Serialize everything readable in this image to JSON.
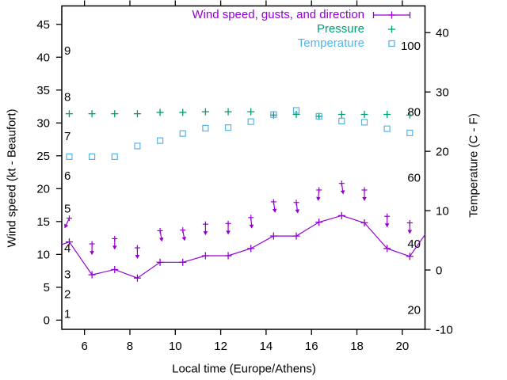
{
  "chart_data": {
    "type": "line",
    "title": "",
    "xlabel": "Local time (Europe/Athens)",
    "ylabel_left": "Wind speed (kt - Beaufort)",
    "ylabel_right": "Temperature (C - F)",
    "x_times_hours": [
      5.33,
      6.33,
      7.33,
      8.33,
      9.33,
      10.33,
      11.33,
      12.33,
      13.33,
      14.33,
      15.33,
      16.33,
      17.33,
      18.33,
      19.33,
      20.33
    ],
    "series": [
      {
        "name": "Wind speed, gusts, and direction",
        "color": "#9400d3",
        "axis": "left",
        "marker": "plus",
        "style": "solid line with plus markers; gust plus above each point with a short wind-direction arrow pointing mostly downward",
        "wind_speed_kt": [
          11.9,
          6.9,
          7.7,
          6.4,
          8.8,
          8.8,
          9.8,
          9.8,
          10.9,
          12.8,
          12.8,
          14.9,
          15.9,
          14.8,
          10.9,
          9.7
        ],
        "gust_kt": [
          15.5,
          11.6,
          12.4,
          11.0,
          13.6,
          13.7,
          14.6,
          14.7,
          15.6,
          18.0,
          17.9,
          19.8,
          20.8,
          19.8,
          15.8,
          14.8
        ],
        "arrow_angle_deg_from_down": [
          -25,
          0,
          0,
          0,
          10,
          10,
          0,
          0,
          5,
          8,
          8,
          -5,
          8,
          0,
          0,
          0
        ],
        "clipped_edge_points": [
          {
            "hour": 5.0,
            "kt": 11.5
          },
          {
            "hour": 21.0,
            "kt": 13.0
          }
        ]
      },
      {
        "name": "Pressure",
        "color": "#009e73",
        "axis": "hidden (no visible pressure scale; plotted height expressed in left-axis units)",
        "marker": "plus",
        "values_left_axis_units": [
          31.4,
          31.4,
          31.4,
          31.4,
          31.6,
          31.6,
          31.7,
          31.7,
          31.7,
          31.2,
          31.3,
          31.0,
          31.3,
          31.3,
          31.3,
          31.2
        ]
      },
      {
        "name": "Temperature",
        "color": "#56b4e9",
        "axis": "right",
        "marker": "open-square",
        "values_c": [
          19.1,
          19.1,
          19.1,
          20.9,
          21.8,
          23.0,
          23.9,
          24.0,
          25.0,
          26.2,
          26.9,
          25.9,
          25.1,
          24.9,
          23.8,
          23.1
        ]
      }
    ],
    "xlim": [
      5,
      21
    ],
    "ylim_left_kt": [
      -1.4,
      47.8
    ],
    "ylim_right_c": [
      -10,
      44.5
    ],
    "xticks": [
      6,
      8,
      10,
      12,
      14,
      16,
      18,
      20
    ],
    "yticks_left": [
      0,
      5,
      10,
      15,
      20,
      25,
      30,
      35,
      40,
      45
    ],
    "yticks_right": [
      -10,
      0,
      10,
      20,
      30,
      40
    ],
    "beaufort_inner_labels": [
      {
        "label": "1",
        "kt": 1
      },
      {
        "label": "2",
        "kt": 4
      },
      {
        "label": "3",
        "kt": 7
      },
      {
        "label": "4",
        "kt": 11
      },
      {
        "label": "5",
        "kt": 17
      },
      {
        "label": "6",
        "kt": 22
      },
      {
        "label": "7",
        "kt": 28
      },
      {
        "label": "8",
        "kt": 34
      },
      {
        "label": "9",
        "kt": 41
      }
    ],
    "fahrenheit_inner_labels": [
      {
        "label": "20",
        "c": -6.67
      },
      {
        "label": "40",
        "c": 4.44
      },
      {
        "label": "60",
        "c": 15.56
      },
      {
        "label": "80",
        "c": 26.67
      },
      {
        "label": "100",
        "c": 37.78
      }
    ],
    "grid": false,
    "legend_position": "top-right-inside",
    "tick_style": "outward; x ticks mirrored on top border",
    "background": "#ffffff",
    "border_color": "#000000",
    "text_color": "#000000"
  }
}
